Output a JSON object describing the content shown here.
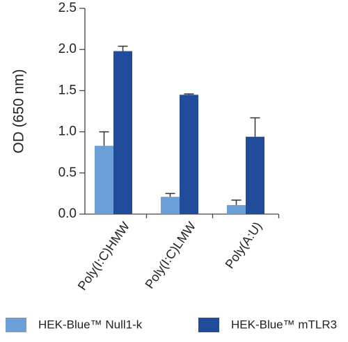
{
  "chart_data": {
    "type": "bar",
    "ylabel": "OD (650 nm)",
    "categories": [
      "Poly(I:C)HMW",
      "Poly(I:C)LMW",
      "Poly(A:U)"
    ],
    "series": [
      {
        "name": "HEK-Blue™ Null1-k",
        "color": "#6a9fd8",
        "values": [
          0.83,
          0.21,
          0.11
        ],
        "errors": [
          0.17,
          0.04,
          0.06
        ]
      },
      {
        "name": "HEK-Blue™ mTLR3",
        "color": "#214c9c",
        "values": [
          1.98,
          1.45,
          0.94
        ],
        "errors": [
          0.06,
          0.01,
          0.23
        ]
      }
    ],
    "ylim": [
      0,
      2.5
    ],
    "yticks": [
      {
        "value": 0,
        "label": "0.0"
      },
      {
        "value": 0.5,
        "label": "0.5"
      },
      {
        "value": 1,
        "label": "1.0"
      },
      {
        "value": 1.5,
        "label": "1.5"
      },
      {
        "value": 2,
        "label": "2.0"
      },
      {
        "value": 2.5,
        "label": "2.5"
      }
    ],
    "legend": "bottom"
  }
}
